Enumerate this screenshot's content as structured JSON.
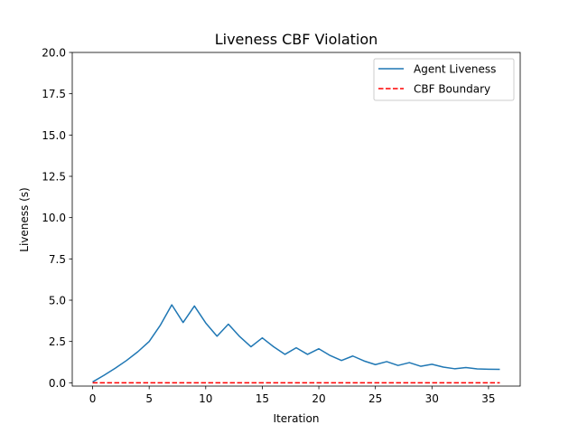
{
  "chart_data": {
    "type": "line",
    "title": "Liveness CBF Violation",
    "xlabel": "Iteration",
    "ylabel": "Liveness (s)",
    "xlim": [
      -1.8,
      37.8
    ],
    "ylim": [
      -0.2,
      20.0
    ],
    "xticks": [
      0,
      5,
      10,
      15,
      20,
      25,
      30,
      35
    ],
    "yticks": [
      0.0,
      2.5,
      5.0,
      7.5,
      10.0,
      12.5,
      15.0,
      17.5,
      20.0
    ],
    "ytick_labels": [
      "0.0",
      "2.5",
      "5.0",
      "7.5",
      "10.0",
      "12.5",
      "15.0",
      "17.5",
      "20.0"
    ],
    "grid": false,
    "legend": "top-right",
    "x": [
      0,
      1,
      2,
      3,
      4,
      5,
      6,
      7,
      8,
      9,
      10,
      11,
      12,
      13,
      14,
      15,
      16,
      17,
      18,
      19,
      20,
      21,
      22,
      23,
      24,
      25,
      26,
      27,
      28,
      29,
      30,
      31,
      32,
      33,
      34,
      35,
      36
    ],
    "series": [
      {
        "name": "Agent Liveness",
        "color": "#1f77b4",
        "style": "solid",
        "values": [
          0.05,
          0.45,
          0.88,
          1.35,
          1.88,
          2.5,
          3.5,
          4.72,
          3.65,
          4.65,
          3.62,
          2.82,
          3.55,
          2.8,
          2.18,
          2.72,
          2.18,
          1.72,
          2.12,
          1.72,
          2.06,
          1.65,
          1.35,
          1.62,
          1.32,
          1.1,
          1.28,
          1.05,
          1.22,
          1.0,
          1.12,
          0.95,
          0.85,
          0.92,
          0.84,
          0.82,
          0.81
        ]
      },
      {
        "name": "CBF Boundary",
        "color": "#ff0000",
        "style": "dashed",
        "values": [
          0,
          0,
          0,
          0,
          0,
          0,
          0,
          0,
          0,
          0,
          0,
          0,
          0,
          0,
          0,
          0,
          0,
          0,
          0,
          0,
          0,
          0,
          0,
          0,
          0,
          0,
          0,
          0,
          0,
          0,
          0,
          0,
          0,
          0,
          0,
          0,
          0
        ]
      }
    ]
  }
}
